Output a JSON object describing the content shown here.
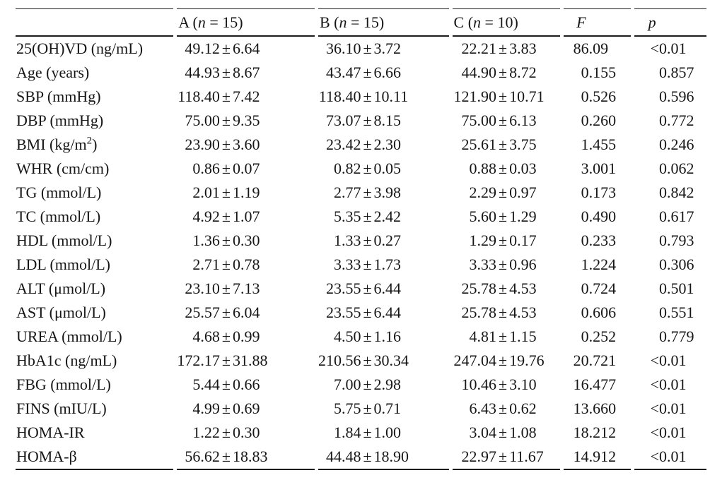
{
  "table": {
    "columns": [
      {
        "key": "label",
        "parts": [
          {
            "t": ""
          }
        ]
      },
      {
        "key": "group_a",
        "parts": [
          {
            "t": "A ("
          },
          {
            "t": "n",
            "i": true
          },
          {
            "t": " = 15)"
          }
        ]
      },
      {
        "key": "group_b",
        "parts": [
          {
            "t": "B ("
          },
          {
            "t": "n",
            "i": true
          },
          {
            "t": " = 15)"
          }
        ]
      },
      {
        "key": "group_c",
        "parts": [
          {
            "t": "C ("
          },
          {
            "t": "n",
            "i": true
          },
          {
            "t": " = 10)"
          }
        ]
      },
      {
        "key": "f_stat",
        "parts": [
          {
            "t": "F",
            "i": true
          }
        ]
      },
      {
        "key": "p_value",
        "parts": [
          {
            "t": "p",
            "i": true
          }
        ]
      }
    ],
    "rows": [
      {
        "label": [
          {
            "t": "25(OH)VD (ng/mL)"
          }
        ],
        "a": "49.12±6.64",
        "b": "36.10±3.72",
        "c": "22.21±3.83",
        "f": "86.09",
        "p": "<0.01"
      },
      {
        "label": [
          {
            "t": "Age (years)"
          }
        ],
        "a": "44.93±8.67",
        "b": "43.47±6.66",
        "c": "44.90±8.72",
        "f": "0.155",
        "p": "0.857"
      },
      {
        "label": [
          {
            "t": "SBP (mmHg)"
          }
        ],
        "a": "118.40±7.42",
        "b": "118.40±10.11",
        "c": "121.90±10.71",
        "f": "0.526",
        "p": "0.596"
      },
      {
        "label": [
          {
            "t": "DBP (mmHg)"
          }
        ],
        "a": "75.00±9.35",
        "b": "73.07±8.15",
        "c": "75.00±6.13",
        "f": "0.260",
        "p": "0.772"
      },
      {
        "label": [
          {
            "t": "BMI (kg/m"
          },
          {
            "t": "2",
            "sup": true
          },
          {
            "t": ")"
          }
        ],
        "a": "23.90±3.60",
        "b": "23.42±2.30",
        "c": "25.61±3.75",
        "f": "1.455",
        "p": "0.246"
      },
      {
        "label": [
          {
            "t": "WHR (cm/cm)"
          }
        ],
        "a": "0.86±0.07",
        "b": "0.82±0.05",
        "c": "0.88±0.03",
        "f": "3.001",
        "p": "0.062"
      },
      {
        "label": [
          {
            "t": "TG (mmol/L)"
          }
        ],
        "a": "2.01±1.19",
        "b": "2.77±3.98",
        "c": "2.29±0.97",
        "f": "0.173",
        "p": "0.842"
      },
      {
        "label": [
          {
            "t": "TC (mmol/L)"
          }
        ],
        "a": "4.92±1.07",
        "b": "5.35±2.42",
        "c": "5.60±1.29",
        "f": "0.490",
        "p": "0.617"
      },
      {
        "label": [
          {
            "t": "HDL (mmol/L)"
          }
        ],
        "a": "1.36±0.30",
        "b": "1.33±0.27",
        "c": "1.29±0.17",
        "f": "0.233",
        "p": "0.793"
      },
      {
        "label": [
          {
            "t": "LDL (mmol/L)"
          }
        ],
        "a": "2.71±0.78",
        "b": "3.33±1.73",
        "c": "3.33±0.96",
        "f": "1.224",
        "p": "0.306"
      },
      {
        "label": [
          {
            "t": "ALT (μmol/L)"
          }
        ],
        "a": "23.10±7.13",
        "b": "23.55±6.44",
        "c": "25.78±4.53",
        "f": "0.724",
        "p": "0.501"
      },
      {
        "label": [
          {
            "t": "AST (μmol/L)"
          }
        ],
        "a": "25.57±6.04",
        "b": "23.55±6.44",
        "c": "25.78±4.53",
        "f": "0.606",
        "p": "0.551"
      },
      {
        "label": [
          {
            "t": "UREA (mmol/L)"
          }
        ],
        "a": "4.68±0.99",
        "b": "4.50±1.16",
        "c": "4.81±1.15",
        "f": "0.252",
        "p": "0.779"
      },
      {
        "label": [
          {
            "t": "HbA1c (ng/mL)"
          }
        ],
        "a": "172.17±31.88",
        "b": "210.56±30.34",
        "c": "247.04±19.76",
        "f": "20.721",
        "p": "<0.01"
      },
      {
        "label": [
          {
            "t": "FBG (mmol/L)"
          }
        ],
        "a": "5.44±0.66",
        "b": "7.00±2.98",
        "c": "10.46±3.10",
        "f": "16.477",
        "p": "<0.01"
      },
      {
        "label": [
          {
            "t": "FINS (mIU/L)"
          }
        ],
        "a": "4.99±0.69",
        "b": "5.75±0.71",
        "c": "6.43±0.62",
        "f": "13.660",
        "p": "<0.01"
      },
      {
        "label": [
          {
            "t": "HOMA-IR"
          }
        ],
        "a": "1.22±0.30",
        "b": "1.84±1.00",
        "c": "3.04±1.08",
        "f": "18.212",
        "p": "<0.01"
      },
      {
        "label": [
          {
            "t": "HOMA-β"
          }
        ],
        "a": "56.62±18.83",
        "b": "44.48±18.90",
        "c": "22.97±11.67",
        "f": "14.912",
        "p": "<0.01"
      }
    ],
    "rule_color": "#1c1c1c",
    "plus_minus_sign": "±"
  }
}
